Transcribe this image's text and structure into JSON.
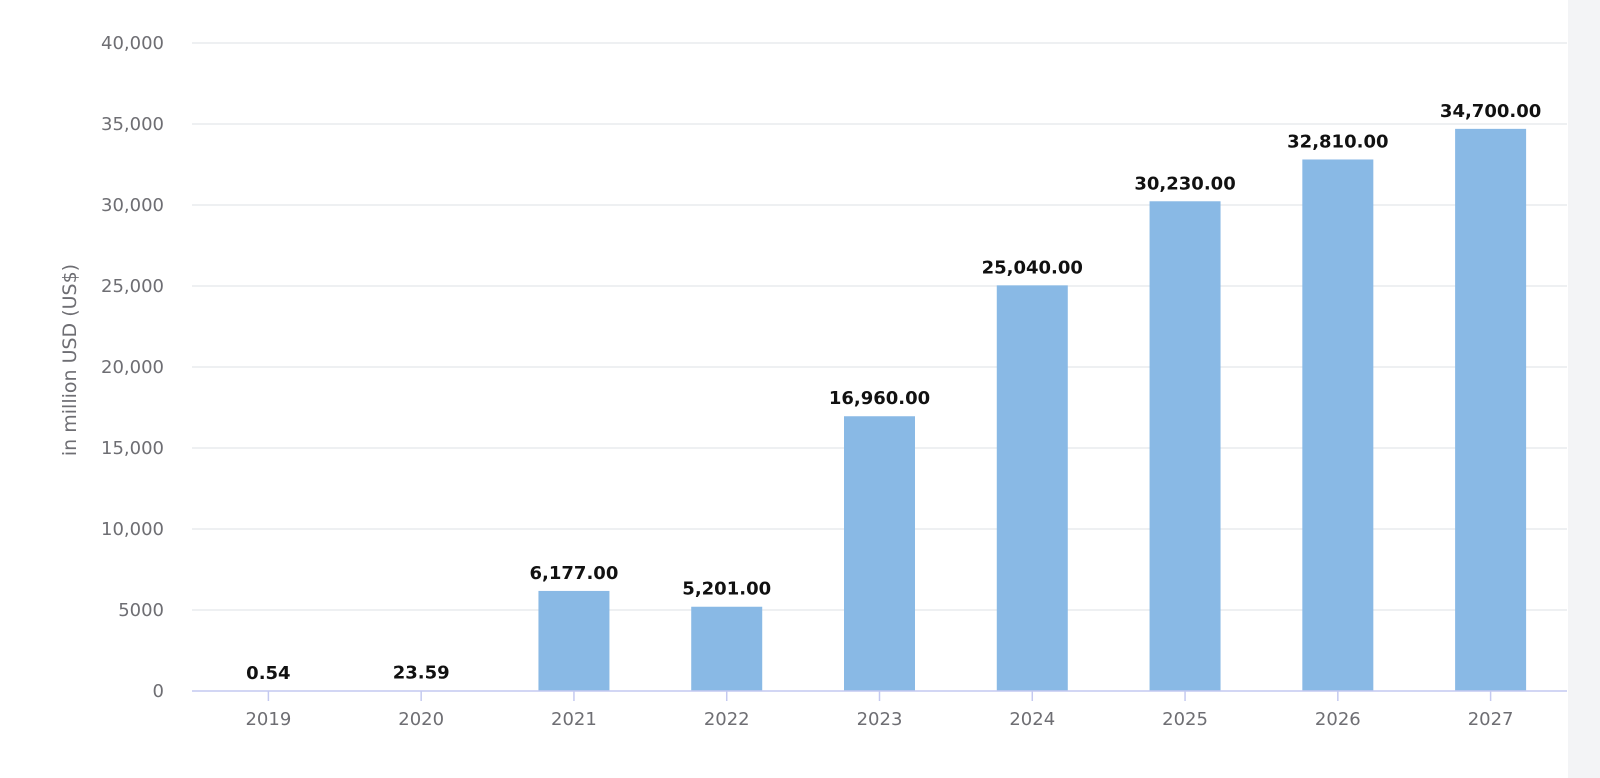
{
  "chart_data": {
    "type": "bar",
    "categories": [
      "2019",
      "2020",
      "2021",
      "2022",
      "2023",
      "2024",
      "2025",
      "2026",
      "2027"
    ],
    "values": [
      0.54,
      23.59,
      6177,
      5201,
      16960,
      25040,
      30230,
      32810,
      34700
    ],
    "data_labels": [
      "0.54",
      "23.59",
      "6,177.00",
      "5,201.00",
      "16,960.00",
      "25,040.00",
      "30,230.00",
      "32,810.00",
      "34,700.00"
    ],
    "y_ticks": [
      0,
      5000,
      10000,
      15000,
      20000,
      25000,
      30000,
      35000,
      40000
    ],
    "y_tick_labels": [
      "0",
      "5000",
      "10,000",
      "15,000",
      "20,000",
      "25,000",
      "30,000",
      "35,000",
      "40,000"
    ],
    "ylabel": "in million USD (US$)",
    "xlabel": "",
    "title": "",
    "ylim": [
      0,
      40000
    ],
    "grid": true,
    "legend": "none",
    "bar_color": "#89b9e5"
  }
}
